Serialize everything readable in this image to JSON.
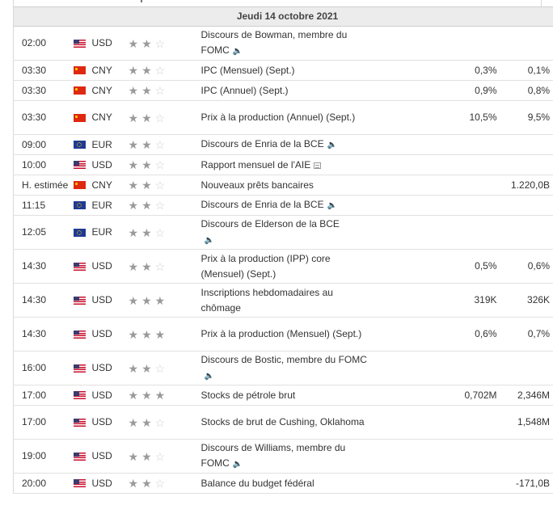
{
  "day_header": "Jeudi 14 octobre 2021",
  "rows": [
    {
      "time": "02:00",
      "flag": "us",
      "currency": "USD",
      "stars": 2,
      "event": "Discours de Bowman, membre du FOMC",
      "icon": "speaker",
      "actual": "",
      "forecast": "",
      "previous": ""
    },
    {
      "time": "03:30",
      "flag": "cn",
      "currency": "CNY",
      "stars": 2,
      "event": "IPC (Mensuel) (Sept.)",
      "icon": "",
      "actual": "",
      "forecast": "0,3%",
      "previous": "0,1%"
    },
    {
      "time": "03:30",
      "flag": "cn",
      "currency": "CNY",
      "stars": 2,
      "event": "IPC (Annuel) (Sept.)",
      "icon": "",
      "actual": "",
      "forecast": "0,9%",
      "previous": "0,8%"
    },
    {
      "time": "03:30",
      "flag": "cn",
      "currency": "CNY",
      "stars": 2,
      "event": "Prix à la production (Annuel) (Sept.)",
      "icon": "",
      "actual": "",
      "forecast": "10,5%",
      "previous": "9,5%"
    },
    {
      "time": "09:00",
      "flag": "eu",
      "currency": "EUR",
      "stars": 2,
      "event": "Discours de Enria de la BCE",
      "icon": "speaker",
      "actual": "",
      "forecast": "",
      "previous": ""
    },
    {
      "time": "10:00",
      "flag": "us",
      "currency": "USD",
      "stars": 2,
      "event": "Rapport mensuel de l'AIE",
      "icon": "doc",
      "actual": "",
      "forecast": "",
      "previous": ""
    },
    {
      "time": "H. estimée",
      "flag": "cn",
      "currency": "CNY",
      "stars": 2,
      "event": "Nouveaux prêts bancaires",
      "icon": "",
      "actual": "",
      "forecast": "",
      "previous": "1.220,0B"
    },
    {
      "time": "11:15",
      "flag": "eu",
      "currency": "EUR",
      "stars": 2,
      "event": "Discours de Enria de la BCE",
      "icon": "speaker",
      "actual": "",
      "forecast": "",
      "previous": ""
    },
    {
      "time": "12:05",
      "flag": "eu",
      "currency": "EUR",
      "stars": 2,
      "event": "Discours de Elderson de la BCE",
      "icon": "speaker-below",
      "actual": "",
      "forecast": "",
      "previous": ""
    },
    {
      "time": "14:30",
      "flag": "us",
      "currency": "USD",
      "stars": 2,
      "event": "Prix à la production (IPP) core (Mensuel) (Sept.)",
      "icon": "",
      "actual": "",
      "forecast": "0,5%",
      "previous": "0,6%"
    },
    {
      "time": "14:30",
      "flag": "us",
      "currency": "USD",
      "stars": 3,
      "event": "Inscriptions hebdomadaires au chômage",
      "icon": "",
      "actual": "",
      "forecast": "319K",
      "previous": "326K"
    },
    {
      "time": "14:30",
      "flag": "us",
      "currency": "USD",
      "stars": 3,
      "event": "Prix à la production (Mensuel) (Sept.)",
      "icon": "",
      "actual": "",
      "forecast": "0,6%",
      "previous": "0,7%"
    },
    {
      "time": "16:00",
      "flag": "us",
      "currency": "USD",
      "stars": 2,
      "event": "Discours de Bostic, membre du FOMC",
      "icon": "speaker",
      "actual": "",
      "forecast": "",
      "previous": ""
    },
    {
      "time": "17:00",
      "flag": "us",
      "currency": "USD",
      "stars": 3,
      "event": "Stocks de pétrole brut",
      "icon": "",
      "actual": "",
      "forecast": "0,702M",
      "previous": "2,346M"
    },
    {
      "time": "17:00",
      "flag": "us",
      "currency": "USD",
      "stars": 2,
      "event": "Stocks de brut de Cushing, Oklahoma",
      "icon": "",
      "actual": "",
      "forecast": "",
      "previous": "1,548M"
    },
    {
      "time": "19:00",
      "flag": "us",
      "currency": "USD",
      "stars": 2,
      "event": "Discours de Williams, membre du FOMC",
      "icon": "speaker",
      "actual": "",
      "forecast": "",
      "previous": ""
    },
    {
      "time": "20:00",
      "flag": "us",
      "currency": "USD",
      "stars": 2,
      "event": "Balance du budget fédéral",
      "icon": "",
      "actual": "",
      "forecast": "",
      "previous": "-171,0B"
    }
  ]
}
